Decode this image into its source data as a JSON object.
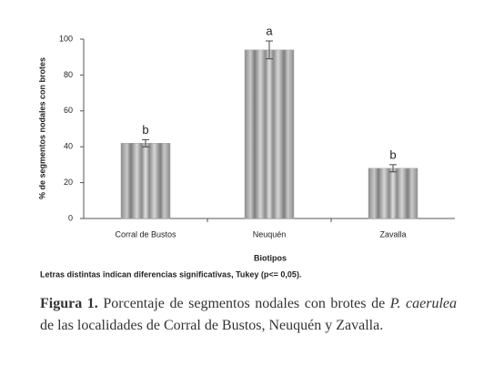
{
  "chart_data": {
    "type": "bar",
    "categories": [
      "Corral de Bustos",
      "Neuquén",
      "Zavalla"
    ],
    "values": [
      42,
      94,
      28
    ],
    "errors": [
      2,
      5,
      2
    ],
    "letters": [
      "b",
      "a",
      "b"
    ],
    "color": "#a6a6a6",
    "ylim": [
      0,
      100
    ],
    "yticks": [
      0,
      20,
      40,
      60,
      80,
      100
    ],
    "ylabel": "% de segmentos nodales con brotes",
    "xlabel": "Biotipos",
    "note": "Letras distintas indican diferencias significativas, Tukey (p<= 0,05)."
  },
  "caption": {
    "label": "Figura 1.",
    "text_before": "Porcentaje de segmentos nodales con brotes de",
    "species": "P. caerulea",
    "text_after": "de las localidades de Corral de Bustos, Neuquén y Zavalla."
  }
}
